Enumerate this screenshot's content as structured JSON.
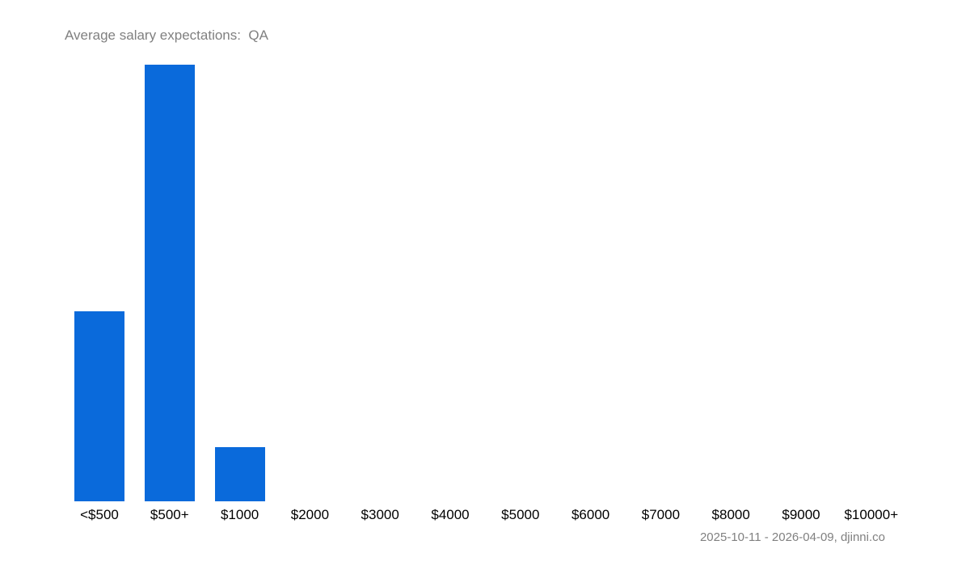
{
  "chart": {
    "title": "Average salary expectations:  QA",
    "footer": "2025-10-11 - 2026-04-09, djinni.co",
    "bar_color": "#0a6adb"
  },
  "chart_data": {
    "type": "bar",
    "title": "Average salary expectations:  QA",
    "xlabel": "",
    "ylabel": "",
    "categories": [
      "<$500",
      "$500+",
      "$1000",
      "$2000",
      "$3000",
      "$4000",
      "$5000",
      "$6000",
      "$7000",
      "$8000",
      "$9000",
      "$10000+"
    ],
    "values": [
      43.5,
      100,
      12.4,
      0,
      0,
      0,
      0,
      0,
      0,
      0,
      0,
      0
    ],
    "value_unit": "relative % of max (no y-axis shown)",
    "ylim": [
      0,
      100
    ],
    "grid": false,
    "legend": null,
    "annotations": [
      "2025-10-11 - 2026-04-09, djinni.co"
    ]
  }
}
